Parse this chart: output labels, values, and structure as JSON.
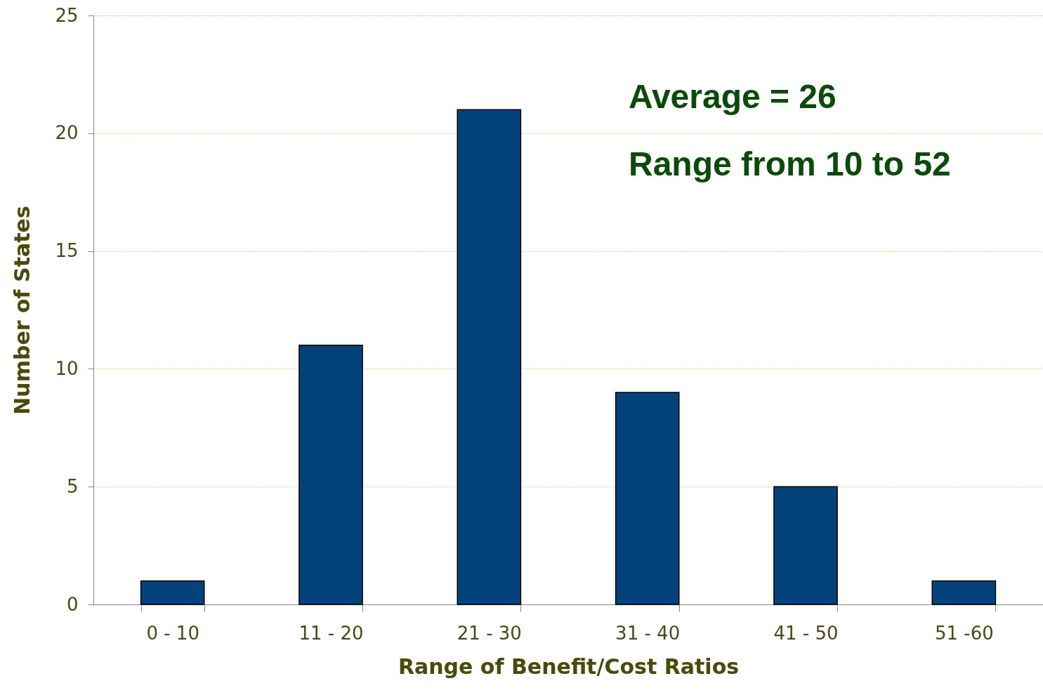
{
  "chart_data": {
    "type": "bar",
    "xlabel": "Range of Benefit/Cost Ratios",
    "ylabel": "Number of States",
    "categories": [
      "0 - 10",
      "11 - 20",
      "21 - 30",
      "31 - 40",
      "41 - 50",
      "51 -60"
    ],
    "values": [
      1,
      11,
      21,
      9,
      5,
      1
    ],
    "color": "#03427a",
    "ylim": [
      0,
      25
    ],
    "yticks": [
      0,
      5,
      10,
      15,
      20,
      25
    ],
    "grid": "y",
    "annotations": [
      "Average = 26",
      "Range from 10 to 52"
    ]
  }
}
